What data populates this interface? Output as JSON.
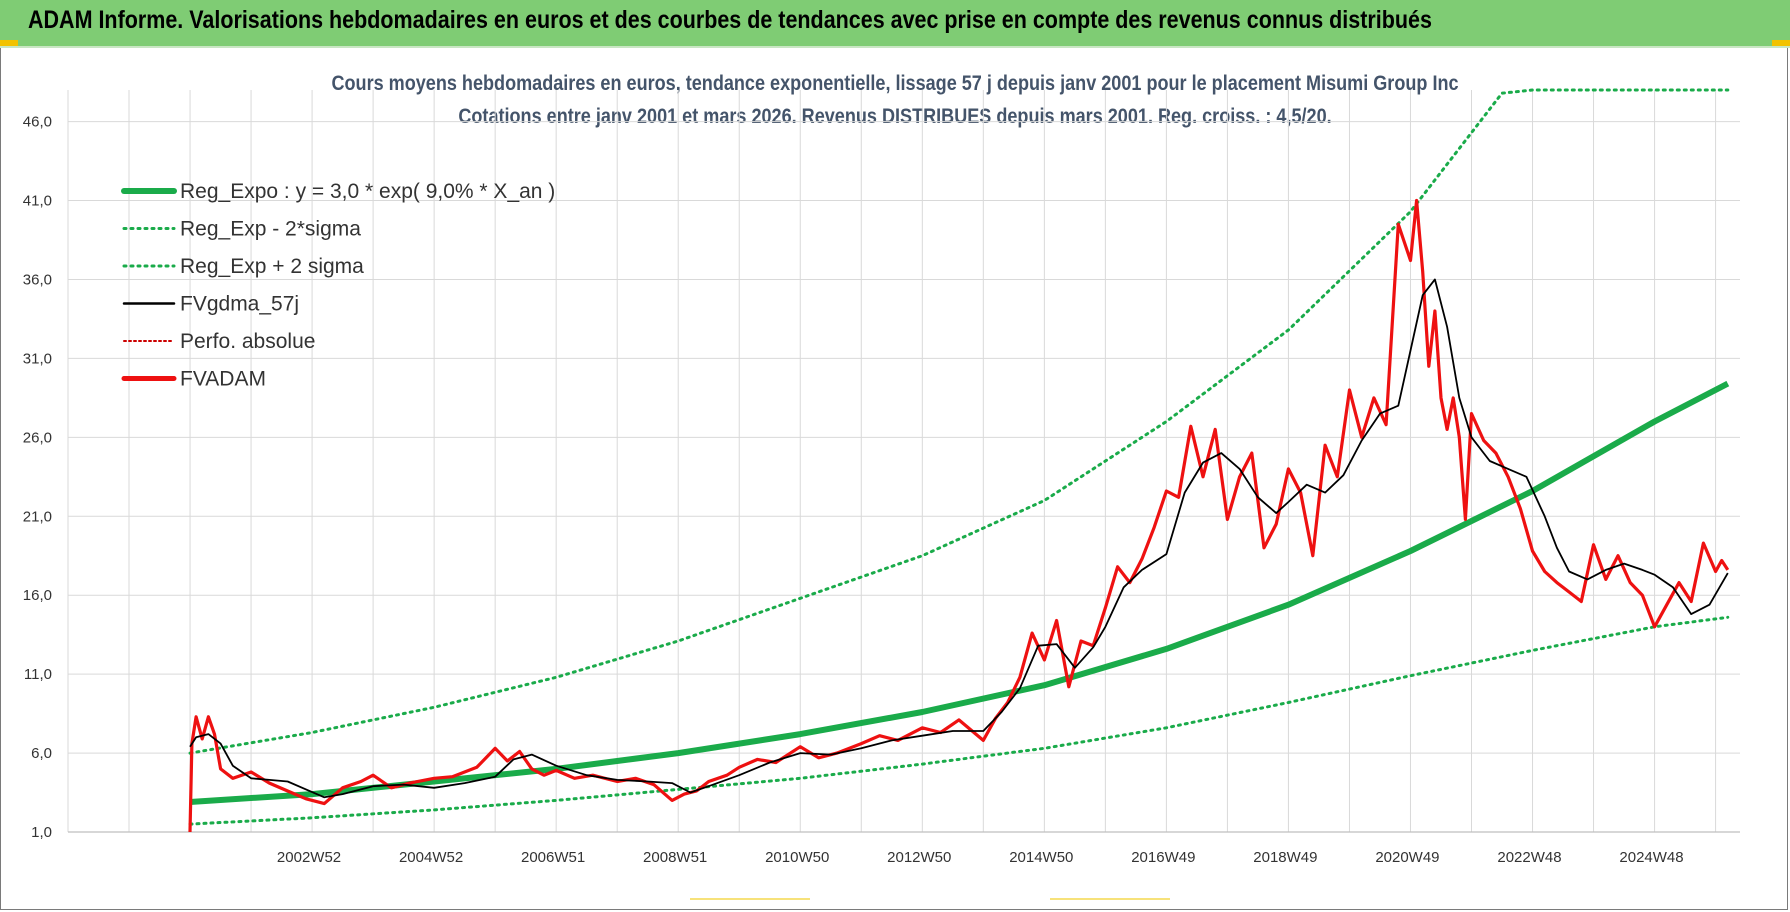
{
  "header": {
    "title": "ADAM Informe. Valorisations hebdomadaires en euros et des courbes de tendances avec prise en compte des revenus connus distribués"
  },
  "colors": {
    "header_bg": "#7fcc74",
    "reg_expo": "#1aab4a",
    "fvgdma": "#000000",
    "fvadam": "#ee1111",
    "perfo": "#cc0000",
    "grid": "#d9d9d9",
    "title": "#44546a"
  },
  "chart_data": {
    "type": "line",
    "title_line1": "Cours moyens hebdomadaires en euros, tendance exponentielle, lissage 57 j depuis janv 2001 pour le placement Misumi Group Inc",
    "title_line2": "Cotations entre janv 2001 et mars 2026. Revenus DISTRIBUES depuis mars 2001. Reg. croiss. : 4,5/20.",
    "xlabel": "",
    "ylabel": "",
    "xlim": [
      1999.0,
      2026.4
    ],
    "ylim": [
      1.0,
      48.0
    ],
    "y_ticks": [
      "1,0",
      "6,0",
      "11,0",
      "16,0",
      "21,0",
      "26,0",
      "31,0",
      "36,0",
      "41,0",
      "46,0"
    ],
    "y_tick_values": [
      1,
      6,
      11,
      16,
      21,
      26,
      31,
      36,
      41,
      46
    ],
    "x_ticks": [
      "2002W52",
      "2004W52",
      "2006W51",
      "2008W51",
      "2010W50",
      "2012W50",
      "2014W50",
      "2016W49",
      "2018W49",
      "2020W49",
      "2022W48",
      "2024W48"
    ],
    "x_tick_values": [
      2002.95,
      2004.95,
      2006.95,
      2008.95,
      2010.95,
      2012.95,
      2014.95,
      2016.95,
      2018.95,
      2020.95,
      2022.95,
      2024.95
    ],
    "x_grid_step_years": 1,
    "legend": [
      {
        "label": "Reg_Expo : y = 3,0 * exp( 9,0% *  X_an )",
        "style": "solid-thick",
        "color": "#1aab4a"
      },
      {
        "label": "Reg_Exp - 2*sigma",
        "style": "dotted",
        "color": "#1aab4a"
      },
      {
        "label": "Reg_Exp + 2 sigma",
        "style": "dotted",
        "color": "#1aab4a"
      },
      {
        "label": "FVgdma_57j",
        "style": "solid-thin",
        "color": "#000000"
      },
      {
        "label": "Perfo. absolue",
        "style": "dotted-thin",
        "color": "#cc0000"
      },
      {
        "label": "FVADAM",
        "style": "solid-thick",
        "color": "#ee1111"
      }
    ],
    "series": [
      {
        "name": "Reg_Expo",
        "x": [
          2001.0,
          2003.0,
          2005.0,
          2007.0,
          2009.0,
          2011.0,
          2013.0,
          2015.0,
          2017.0,
          2019.0,
          2021.0,
          2023.0,
          2025.0,
          2026.2
        ],
        "values": [
          2.9,
          3.4,
          4.2,
          5.0,
          6.0,
          7.2,
          8.6,
          10.3,
          12.6,
          15.4,
          18.8,
          22.6,
          27.0,
          29.4
        ]
      },
      {
        "name": "Reg_Exp - 2*sigma",
        "x": [
          2001.0,
          2003.0,
          2005.0,
          2007.0,
          2009.0,
          2011.0,
          2013.0,
          2015.0,
          2017.0,
          2019.0,
          2021.0,
          2023.0,
          2025.0,
          2026.2
        ],
        "values": [
          1.5,
          1.9,
          2.4,
          3.0,
          3.7,
          4.4,
          5.3,
          6.3,
          7.6,
          9.2,
          10.9,
          12.5,
          14.0,
          14.6
        ]
      },
      {
        "name": "Reg_Exp + 2 sigma",
        "x": [
          2001.0,
          2003.0,
          2005.0,
          2007.0,
          2009.0,
          2011.0,
          2013.0,
          2015.0,
          2017.0,
          2019.0,
          2021.0,
          2022.5,
          2023.0,
          2026.2
        ],
        "values": [
          6.0,
          7.3,
          8.9,
          10.8,
          13.1,
          15.8,
          18.5,
          22.0,
          27.0,
          32.8,
          40.3,
          47.8,
          48.0,
          48.0
        ]
      },
      {
        "name": "FVgdma_57j",
        "x": [
          2001.0,
          2001.1,
          2001.3,
          2001.5,
          2001.7,
          2002.0,
          2002.3,
          2002.6,
          2002.9,
          2003.2,
          2003.5,
          2004.0,
          2004.5,
          2005.0,
          2005.5,
          2006.0,
          2006.3,
          2006.6,
          2007.0,
          2007.5,
          2008.0,
          2008.5,
          2008.9,
          2009.2,
          2009.5,
          2010.0,
          2010.5,
          2011.0,
          2011.5,
          2012.0,
          2012.5,
          2013.0,
          2013.5,
          2014.0,
          2014.3,
          2014.6,
          2014.9,
          2015.2,
          2015.5,
          2015.8,
          2016.0,
          2016.3,
          2016.6,
          2017.0,
          2017.3,
          2017.6,
          2017.9,
          2018.2,
          2018.5,
          2018.8,
          2019.0,
          2019.3,
          2019.6,
          2019.9,
          2020.2,
          2020.5,
          2020.8,
          2021.0,
          2021.2,
          2021.4,
          2021.6,
          2021.8,
          2022.0,
          2022.3,
          2022.6,
          2022.9,
          2023.2,
          2023.4,
          2023.6,
          2023.9,
          2024.2,
          2024.5,
          2024.8,
          2025.0,
          2025.3,
          2025.6,
          2025.9,
          2026.2
        ],
        "values": [
          6.4,
          7.0,
          7.2,
          6.6,
          5.2,
          4.4,
          4.3,
          4.2,
          3.7,
          3.2,
          3.4,
          3.9,
          4.0,
          3.8,
          4.1,
          4.5,
          5.6,
          5.9,
          5.2,
          4.6,
          4.3,
          4.2,
          4.1,
          3.5,
          3.9,
          4.6,
          5.4,
          6.0,
          5.9,
          6.3,
          6.8,
          7.1,
          7.4,
          7.4,
          8.6,
          10.1,
          12.8,
          12.9,
          11.4,
          12.7,
          14.0,
          16.5,
          17.6,
          18.6,
          22.5,
          24.4,
          25.0,
          24.0,
          22.2,
          21.2,
          21.9,
          23.0,
          22.5,
          23.6,
          25.8,
          27.5,
          28.0,
          31.5,
          35.0,
          36.0,
          33.0,
          28.5,
          26.0,
          24.5,
          24.0,
          23.5,
          21.0,
          19.0,
          17.5,
          17.0,
          17.6,
          18.0,
          17.6,
          17.3,
          16.5,
          14.8,
          15.4,
          17.4
        ]
      },
      {
        "name": "FVADAM",
        "x": [
          2001.0,
          2001.03,
          2001.1,
          2001.2,
          2001.3,
          2001.4,
          2001.5,
          2001.7,
          2002.0,
          2002.3,
          2002.6,
          2002.9,
          2003.2,
          2003.5,
          2003.8,
          2004.0,
          2004.3,
          2004.6,
          2005.0,
          2005.3,
          2005.7,
          2006.0,
          2006.2,
          2006.4,
          2006.6,
          2006.8,
          2007.0,
          2007.3,
          2007.6,
          2008.0,
          2008.3,
          2008.6,
          2008.9,
          2009.1,
          2009.3,
          2009.5,
          2009.8,
          2010.0,
          2010.3,
          2010.6,
          2011.0,
          2011.3,
          2011.6,
          2012.0,
          2012.3,
          2012.6,
          2013.0,
          2013.3,
          2013.6,
          2014.0,
          2014.2,
          2014.4,
          2014.6,
          2014.8,
          2015.0,
          2015.2,
          2015.4,
          2015.6,
          2015.8,
          2016.0,
          2016.2,
          2016.4,
          2016.6,
          2016.8,
          2017.0,
          2017.2,
          2017.4,
          2017.6,
          2017.8,
          2018.0,
          2018.2,
          2018.4,
          2018.6,
          2018.8,
          2019.0,
          2019.2,
          2019.4,
          2019.6,
          2019.8,
          2020.0,
          2020.2,
          2020.4,
          2020.6,
          2020.8,
          2021.0,
          2021.1,
          2021.2,
          2021.3,
          2021.4,
          2021.5,
          2021.6,
          2021.7,
          2021.8,
          2021.9,
          2022.0,
          2022.2,
          2022.4,
          2022.6,
          2022.8,
          2023.0,
          2023.2,
          2023.4,
          2023.6,
          2023.8,
          2024.0,
          2024.2,
          2024.4,
          2024.6,
          2024.8,
          2025.0,
          2025.2,
          2025.4,
          2025.6,
          2025.8,
          2026.0,
          2026.1,
          2026.2
        ],
        "values": [
          1.0,
          6.6,
          8.3,
          6.9,
          8.3,
          7.2,
          5.0,
          4.4,
          4.8,
          4.1,
          3.6,
          3.1,
          2.8,
          3.8,
          4.2,
          4.6,
          3.8,
          4.1,
          4.4,
          4.5,
          5.1,
          6.3,
          5.5,
          6.1,
          5.0,
          4.6,
          4.9,
          4.4,
          4.6,
          4.2,
          4.4,
          4.0,
          3.0,
          3.4,
          3.6,
          4.2,
          4.6,
          5.1,
          5.6,
          5.4,
          6.4,
          5.7,
          6.0,
          6.6,
          7.1,
          6.8,
          7.6,
          7.3,
          8.1,
          6.8,
          8.2,
          9.2,
          10.8,
          13.6,
          11.9,
          14.4,
          10.2,
          13.1,
          12.8,
          15.2,
          17.8,
          16.8,
          18.3,
          20.3,
          22.6,
          22.2,
          26.7,
          23.5,
          26.5,
          20.8,
          23.5,
          25.0,
          19.0,
          20.5,
          24.0,
          22.5,
          18.5,
          25.5,
          23.5,
          29.0,
          26.0,
          28.5,
          26.8,
          39.5,
          37.2,
          41.0,
          36.5,
          30.5,
          34.0,
          28.5,
          26.5,
          28.5,
          26.0,
          20.8,
          27.5,
          25.8,
          25.0,
          23.5,
          21.5,
          18.8,
          17.5,
          16.8,
          16.2,
          15.6,
          19.2,
          17.0,
          18.5,
          16.8,
          16.0,
          14.0,
          15.4,
          16.8,
          15.6,
          19.3,
          17.5,
          18.2,
          17.6
        ]
      }
    ]
  }
}
